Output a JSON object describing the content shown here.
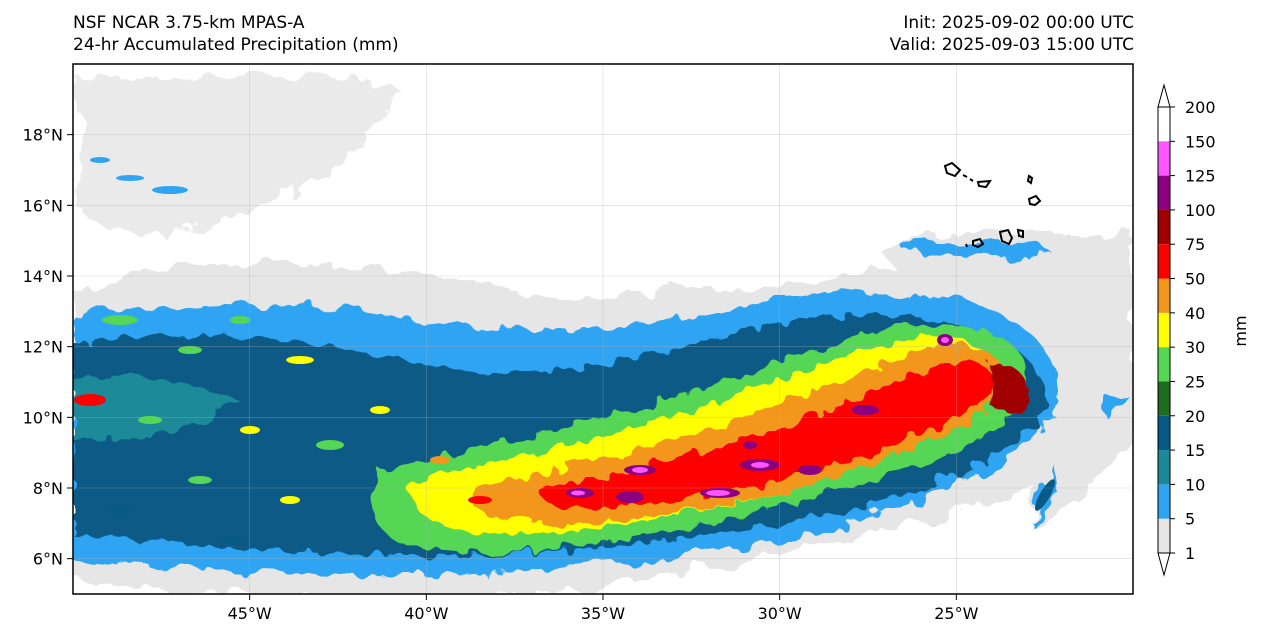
{
  "header": {
    "title_line1": "NSF NCAR 3.75-km MPAS-A",
    "title_line2": "24-hr Accumulated Precipitation (mm)",
    "init": "Init: 2025-09-02 00:00 UTC",
    "valid": "Valid: 2025-09-03 15:00 UTC"
  },
  "map": {
    "lon_range": [
      -50,
      -20
    ],
    "lat_range": [
      5,
      20
    ],
    "lon_ticks": [
      {
        "value": -45,
        "label": "45°W"
      },
      {
        "value": -40,
        "label": "40°W"
      },
      {
        "value": -35,
        "label": "35°W"
      },
      {
        "value": -30,
        "label": "30°W"
      },
      {
        "value": -25,
        "label": "25°W"
      }
    ],
    "lat_ticks": [
      {
        "value": 6,
        "label": "6°N"
      },
      {
        "value": 8,
        "label": "8°N"
      },
      {
        "value": 10,
        "label": "10°N"
      },
      {
        "value": 12,
        "label": "12°N"
      },
      {
        "value": 14,
        "label": "14°N"
      },
      {
        "value": 16,
        "label": "16°N"
      },
      {
        "value": 18,
        "label": "18°N"
      }
    ],
    "gridlines": true
  },
  "colorbar": {
    "unit_label": "mm",
    "levels": [
      "1",
      "5",
      "10",
      "15",
      "20",
      "25",
      "30",
      "40",
      "50",
      "75",
      "100",
      "125",
      "150",
      "200"
    ],
    "colors": [
      "#e6e6e6",
      "#2fa4f2",
      "#1a8a99",
      "#075a86",
      "#1f6b1f",
      "#55d655",
      "#ffff00",
      "#f2961e",
      "#ff0000",
      "#a00000",
      "#8b0080",
      "#ff55ff"
    ],
    "extend": "both",
    "extend_min_color": "#ffffff",
    "extend_max_color": "#ffffff"
  }
}
